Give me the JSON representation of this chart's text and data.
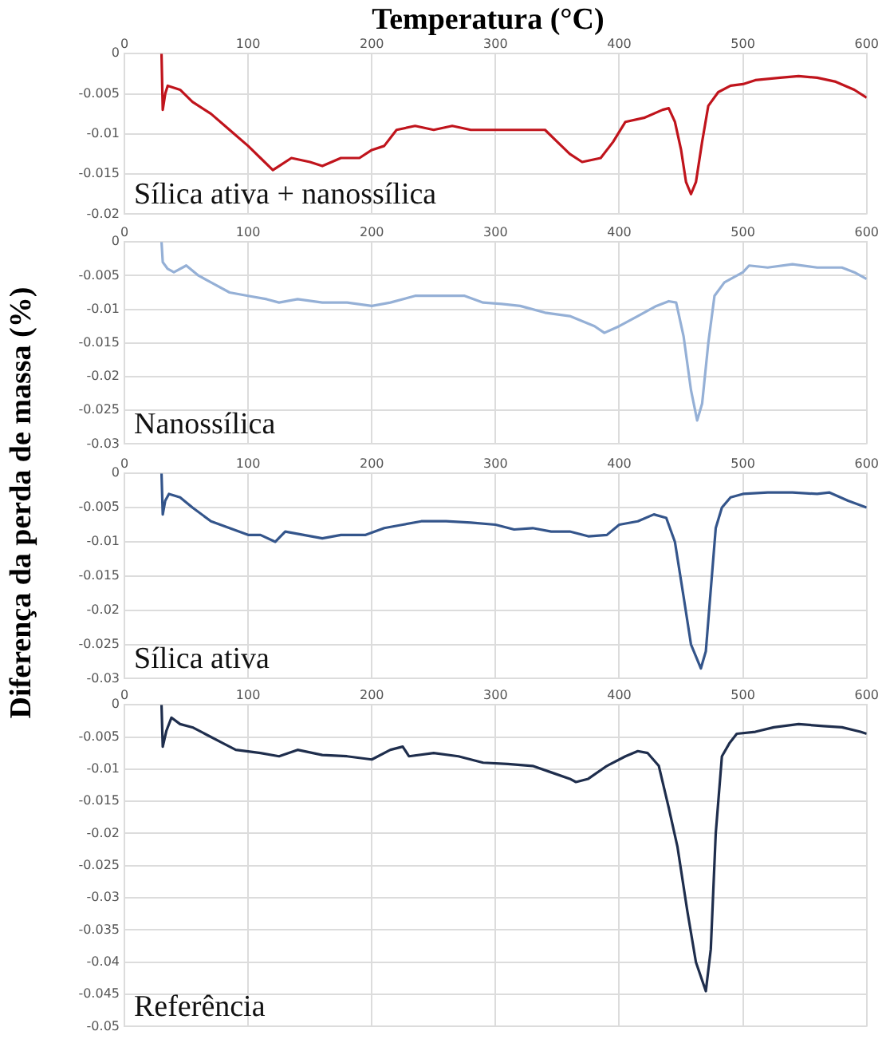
{
  "chart_data": [
    {
      "type": "line",
      "xlabel": "Temperatura (°C)",
      "ylabel": "Diferença da perda de massa (%)",
      "annotations": [
        "Sílica ativa + nanossílica"
      ],
      "xlim": [
        0,
        600
      ],
      "xticks": [
        0,
        100,
        200,
        300,
        400,
        500,
        600
      ],
      "ylim": [
        -0.02,
        0
      ],
      "yticks": [
        -0.02,
        -0.015,
        -0.01,
        -0.005,
        0
      ],
      "grid": true,
      "x": [
        30,
        31,
        33,
        35,
        45,
        55,
        70,
        85,
        100,
        110,
        120,
        125,
        135,
        150,
        160,
        175,
        190,
        200,
        210,
        220,
        235,
        250,
        265,
        280,
        300,
        320,
        340,
        350,
        360,
        370,
        385,
        395,
        405,
        420,
        435,
        440,
        445,
        450,
        454,
        458,
        462,
        467,
        472,
        480,
        490,
        500,
        510,
        530,
        545,
        560,
        575,
        590,
        600
      ],
      "series": [
        {
          "color": "#c0141c",
          "values": [
            0,
            -0.007,
            -0.005,
            -0.004,
            -0.0045,
            -0.006,
            -0.0075,
            -0.0095,
            -0.0115,
            -0.013,
            -0.0145,
            -0.014,
            -0.013,
            -0.0135,
            -0.014,
            -0.013,
            -0.013,
            -0.012,
            -0.0115,
            -0.0095,
            -0.009,
            -0.0095,
            -0.009,
            -0.0095,
            -0.0095,
            -0.0095,
            -0.0095,
            -0.011,
            -0.0125,
            -0.0135,
            -0.013,
            -0.011,
            -0.0085,
            -0.008,
            -0.007,
            -0.0068,
            -0.0085,
            -0.012,
            -0.016,
            -0.0175,
            -0.016,
            -0.011,
            -0.0065,
            -0.0048,
            -0.004,
            -0.0038,
            -0.0033,
            -0.003,
            -0.0028,
            -0.003,
            -0.0035,
            -0.0045,
            -0.0055
          ]
        }
      ]
    },
    {
      "type": "line",
      "annotations": [
        "Nanossílica"
      ],
      "xlim": [
        0,
        600
      ],
      "xticks": [
        0,
        100,
        200,
        300,
        400,
        500,
        600
      ],
      "ylim": [
        -0.03,
        0
      ],
      "yticks": [
        -0.03,
        -0.025,
        -0.02,
        -0.015,
        -0.01,
        -0.005,
        0
      ],
      "grid": true,
      "x": [
        30,
        31,
        35,
        40,
        50,
        60,
        70,
        85,
        100,
        115,
        125,
        140,
        160,
        180,
        200,
        215,
        235,
        255,
        275,
        290,
        305,
        320,
        340,
        360,
        380,
        388,
        400,
        415,
        430,
        440,
        446,
        452,
        458,
        463,
        467,
        472,
        477,
        485,
        500,
        505,
        520,
        540,
        560,
        580,
        590,
        600
      ],
      "series": [
        {
          "color": "#95b0d6",
          "values": [
            0,
            -0.003,
            -0.004,
            -0.0045,
            -0.0035,
            -0.005,
            -0.006,
            -0.0075,
            -0.008,
            -0.0085,
            -0.009,
            -0.0085,
            -0.009,
            -0.009,
            -0.0095,
            -0.009,
            -0.008,
            -0.008,
            -0.008,
            -0.009,
            -0.0092,
            -0.0095,
            -0.0105,
            -0.011,
            -0.0125,
            -0.0135,
            -0.0125,
            -0.011,
            -0.0095,
            -0.0088,
            -0.009,
            -0.014,
            -0.022,
            -0.0265,
            -0.024,
            -0.015,
            -0.008,
            -0.006,
            -0.0045,
            -0.0035,
            -0.0038,
            -0.0033,
            -0.0038,
            -0.0038,
            -0.0045,
            -0.0055
          ]
        }
      ]
    },
    {
      "type": "line",
      "annotations": [
        "Sílica ativa"
      ],
      "xlim": [
        0,
        600
      ],
      "xticks": [
        0,
        100,
        200,
        300,
        400,
        500,
        600
      ],
      "ylim": [
        -0.03,
        0
      ],
      "yticks": [
        -0.03,
        -0.025,
        -0.02,
        -0.015,
        -0.01,
        -0.005,
        0
      ],
      "grid": true,
      "x": [
        30,
        31,
        33,
        36,
        45,
        55,
        70,
        85,
        100,
        110,
        122,
        130,
        145,
        160,
        175,
        195,
        210,
        225,
        240,
        260,
        280,
        300,
        315,
        330,
        345,
        360,
        375,
        390,
        400,
        415,
        428,
        438,
        445,
        452,
        458,
        466,
        470,
        474,
        478,
        483,
        490,
        500,
        520,
        540,
        560,
        570,
        585,
        600
      ],
      "series": [
        {
          "color": "#34558b",
          "values": [
            0,
            -0.006,
            -0.004,
            -0.003,
            -0.0035,
            -0.005,
            -0.007,
            -0.008,
            -0.009,
            -0.009,
            -0.01,
            -0.0085,
            -0.009,
            -0.0095,
            -0.009,
            -0.009,
            -0.008,
            -0.0075,
            -0.007,
            -0.007,
            -0.0072,
            -0.0075,
            -0.0082,
            -0.008,
            -0.0085,
            -0.0085,
            -0.0092,
            -0.009,
            -0.0075,
            -0.007,
            -0.006,
            -0.0065,
            -0.01,
            -0.018,
            -0.025,
            -0.0285,
            -0.026,
            -0.017,
            -0.008,
            -0.005,
            -0.0035,
            -0.003,
            -0.0028,
            -0.0028,
            -0.003,
            -0.0028,
            -0.004,
            -0.005
          ]
        }
      ]
    },
    {
      "type": "line",
      "annotations": [
        "Referência"
      ],
      "xlim": [
        0,
        600
      ],
      "xticks": [
        0,
        100,
        200,
        300,
        400,
        500,
        600
      ],
      "ylim": [
        -0.05,
        0
      ],
      "yticks": [
        -0.05,
        -0.045,
        -0.04,
        -0.035,
        -0.03,
        -0.025,
        -0.02,
        -0.015,
        -0.01,
        -0.005,
        0
      ],
      "grid": true,
      "x": [
        30,
        31,
        34,
        38,
        45,
        55,
        65,
        80,
        90,
        110,
        125,
        140,
        160,
        180,
        200,
        215,
        225,
        230,
        250,
        270,
        290,
        310,
        330,
        345,
        360,
        365,
        375,
        390,
        405,
        415,
        423,
        432,
        440,
        447,
        455,
        462,
        470,
        474,
        478,
        483,
        489,
        495,
        510,
        525,
        545,
        565,
        580,
        595,
        600
      ],
      "series": [
        {
          "color": "#1f2e4d",
          "values": [
            0,
            -0.0065,
            -0.004,
            -0.002,
            -0.003,
            -0.0035,
            -0.0045,
            -0.006,
            -0.007,
            -0.0075,
            -0.008,
            -0.007,
            -0.0078,
            -0.008,
            -0.0085,
            -0.007,
            -0.0065,
            -0.008,
            -0.0075,
            -0.008,
            -0.009,
            -0.0092,
            -0.0095,
            -0.0105,
            -0.0115,
            -0.012,
            -0.0115,
            -0.0095,
            -0.008,
            -0.0072,
            -0.0075,
            -0.0095,
            -0.016,
            -0.022,
            -0.032,
            -0.04,
            -0.0445,
            -0.038,
            -0.02,
            -0.008,
            -0.006,
            -0.0045,
            -0.0042,
            -0.0035,
            -0.003,
            -0.0033,
            -0.0035,
            -0.0042,
            -0.0045
          ]
        }
      ]
    }
  ]
}
